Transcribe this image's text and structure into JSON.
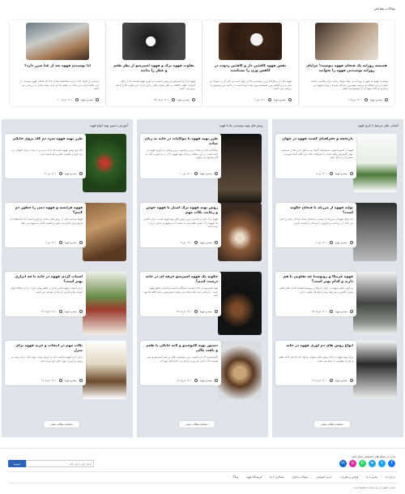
{
  "top_section": {
    "title": "مقالات تصادفی",
    "cards": [
      {
        "title": "همیشه روزانه یک فنجان قهوه بنوشید؟ مزایای روزانه نوشیدنی قهوه را بخوانید",
        "excerpt": "نوشیدن قهوه به صورت روزانه می تواند فواید زیادی برای سلامتی داشته باشد. در این مقاله به بررسی مهمترین مزایای مصرف روزانه قهوه می پردازیم و نکات مهم آن را توضیح می دهیم.",
        "author": "بیسترو قهوه",
        "date": "۱۴۰۱ مرداد ۹"
      },
      {
        "title": "نقش قهوه کافئین دار و کافئین زدوده در کاهش وزن را بشناسید",
        "excerpt": "قهوه یکی از پرطرفدارترین نوشیدنی ها در جهان است و تاثیر آن بر سوخت و ساز بدن و کاهش وزن همیشه مورد بحث بوده است. در ادامه این موضوع را بررسی می کنیم.",
        "author": "بیسترو قهوه",
        "date": "۱۴۰۱ تیر ۲"
      },
      {
        "title": "تفاوت قهوه ترک و قهوه اسپرسو از نظر طعم و عطر را بدانید",
        "excerpt": "قهوه ترک و اسپرسو دو روش محبوب دم آوری قهوه هستند که از نظر آسیاب، طعم، غلظت و عطر تفاوت های زیادی دارند. این تفاوت ها را با هم مرور می کنیم.",
        "author": "بیسترو قهوه",
        "date": "۱۴۰۱ خرداد ۲۸"
      },
      {
        "title": "آیا نوشیدن قهوه بعد از غذا ضرر دارد؟",
        "excerpt": "بسیاری از افراد عادت دارند بلافاصله بعد از غذا یک فنجان قهوه بنوشند. در این مقاله اثرات این عادت بر هضم غذا و جذب مواد مغذی را بررسی می کنیم.",
        "author": "بیسترو قهوه",
        "date": "۱۴۰۱ خرداد ۱۰"
      }
    ]
  },
  "columns": [
    {
      "title": "آشنایی های مرتبط با تاریخ قهوه",
      "more": "مشاهده مطالب بیشتر",
      "items": [
        {
          "title": "تاریخچه و جغرافیای کشت قهوه در جهان",
          "excerpt": "قهوه از کشور اتیوپی سرچشمه گرفته و در طول قرن ها در سراسر جهان گسترش یافته است. با تاریخچه جالب این گیاه آشنا شوید و مسیر آن را دنبال کنید.",
          "author": "بیسترو قهوه",
          "date": "۱۴۰۱ تیر ۸"
        },
        {
          "title": "تولید قهوه از مزرعه تا فنجان چگونه است؟",
          "excerpt": "دانه های قهوه از مزرعه تا رسیدن به فنجان شما مراحل زیادی را طی می کنند؛ از برداشت و فرآوری تا بو دادن و آسیاب کردن.",
          "author": "بیسترو قهوه",
          "date": "۱۴۰۱ تیر ۲"
        },
        {
          "title": "قهوه عربیکا و روبوستا چه تفاوتی با هم دارند و کدام بهتر است؟",
          "excerpt": "دو گونه اصلی قهوه در جهان عربیکا و روبوستا هستند که از نظر طعم، میزان کافئین و شرایط رشد با یکدیگر تفاوت دارند.",
          "author": "بیسترو قهوه",
          "date": "۱۴۰۱ خرداد ۲۸"
        },
        {
          "title": "انواع روش های دم آوری قهوه در خانه",
          "excerpt": "برای تهیه قهوه در خانه روش های متنوعی وجود دارد که هر کدام طعم و تجربه متفاوتی به شما می دهند.",
          "author": "بیسترو قهوه",
          "date": "۱۴۰۱ خرداد ۱۲"
        }
      ]
    },
    {
      "title": "روش های تهیه نوشیدنی ها با قهوه",
      "more": "مشاهده مطالب بیشتر",
      "items": [
        {
          "title": "طرز تهیه قهوه با موکاپات در خانه به زبان ساده",
          "excerpt": "موکاپات یکی از ساده ترین و محبوب ترین وسایل دم آوری قهوه در خانه است. در این مطلب مراحل تهیه قهوه با آن را به صورت گام به گام توضیح می دهیم.",
          "author": "بیسترو قهوه",
          "date": "۱۴۰۱ تیر ۱۰"
        },
        {
          "title": "روش تهیه قهوه ترک اصیل با قهوه جوش و رعایت نکات مهم",
          "excerpt": "قهوه ترک یکی از قدیمی ترین روش های تهیه قهوه است. برای داشتن یک قهوه ترک خوش طعم باید به نسبت آب و قهوه و دمای حرارت توجه کنید.",
          "author": "بیسترو قهوه",
          "date": "۱۴۰۱ تیر ۴"
        },
        {
          "title": "چگونه یک قهوه اسپرسو حرفه ای در خانه درست کنیم؟",
          "excerpt": "تهیه اسپرسو در خانه نیازمند دستگاه مناسب و آسیاب دقیق قهوه است. با رعایت چند نکته ساده می توانید اسپرسویی مانند کافه ها تهیه کنید.",
          "author": "بیسترو قهوه",
          "date": "۱۴۰۱ خرداد ۲۴"
        },
        {
          "title": "دستور تهیه کاپوچینو و لاته خانگی با طعم و بافت عالی",
          "excerpt": "کاپوچینو و لاته از محبوب ترین نوشیدنی های بر پایه اسپرسو و شیر هستند که با کمی تمرین به راحتی در خانه قابل تهیه اند.",
          "author": "بیسترو قهوه",
          "date": "۱۴۰۱ خرداد ۱۵"
        }
      ]
    },
    {
      "title": "آموزش دستور تهیه انواع قهوه",
      "more": "مشاهده مطالب بیشتر",
      "items": [
        {
          "title": "طرز تهیه قهوه سرد دم کلد بروی خانگی",
          "excerpt": "کلد برو نوعی قهوه است که با آب سرد و در مدت زمان طولانی دم می شود و طعمی ملایم و کم اسید دارد.",
          "author": "بیسترو قهوه",
          "date": "۱۴۰۱ تیر ۱۲"
        },
        {
          "title": "قهوه فرانسه و قهوه دمی را چطور دم کنیم؟",
          "excerpt": "قهوه فرانسه یکی از روش های ساده دم آوری است که با استفاده از فرنچ پرس انجام می شود و طعمی کامل به قهوه می دهد.",
          "author": "بیسترو قهوه",
          "date": "۱۴۰۱ تیر ۳"
        },
        {
          "title": "آسیاب کردن قهوه در خانه با چه ابزاری بهتر است؟",
          "excerpt": "درجه آسیاب قهوه تاثیر زیادی بر طعم نهایی دارد. در این مقاله انواع آسیاب ها و کاربرد آن ها را معرفی می کنیم.",
          "author": "بیسترو قهوه",
          "date": "۱۴۰۱ خرداد ۲۶"
        },
        {
          "title": "نکات مهم در انتخاب و خرید قهوه برای منزل",
          "excerpt": "برای خرید قهوه مناسب باید به تاریخ رست، نوع دانه، درجه رست و روش دم آوری مورد نظر خود توجه کنید.",
          "author": "بیسترو قهوه",
          "date": "۱۴۰۱ خرداد ۱۴"
        }
      ]
    }
  ],
  "footer": {
    "social_label": "ما را در شبکه های اجتماعی دنبال کنید",
    "social_icons": [
      "facebook-icon",
      "linkedin-icon",
      "instagram-icon",
      "whatsapp-icon",
      "telegram-icon",
      "twitter-icon"
    ],
    "newsletter_placeholder": "ایمیل خود را وارد کنید",
    "newsletter_button": "عضویت",
    "links": [
      "درباره ما",
      "تماس با ما",
      "قوانین و مقررات",
      "حریم خصوصی",
      "سوالات متداول",
      "همکاری با ما",
      "فروشگاه قهوه",
      "وبلاگ"
    ],
    "copyright": "تمامی حقوق این وب سایت محفوظ است"
  }
}
